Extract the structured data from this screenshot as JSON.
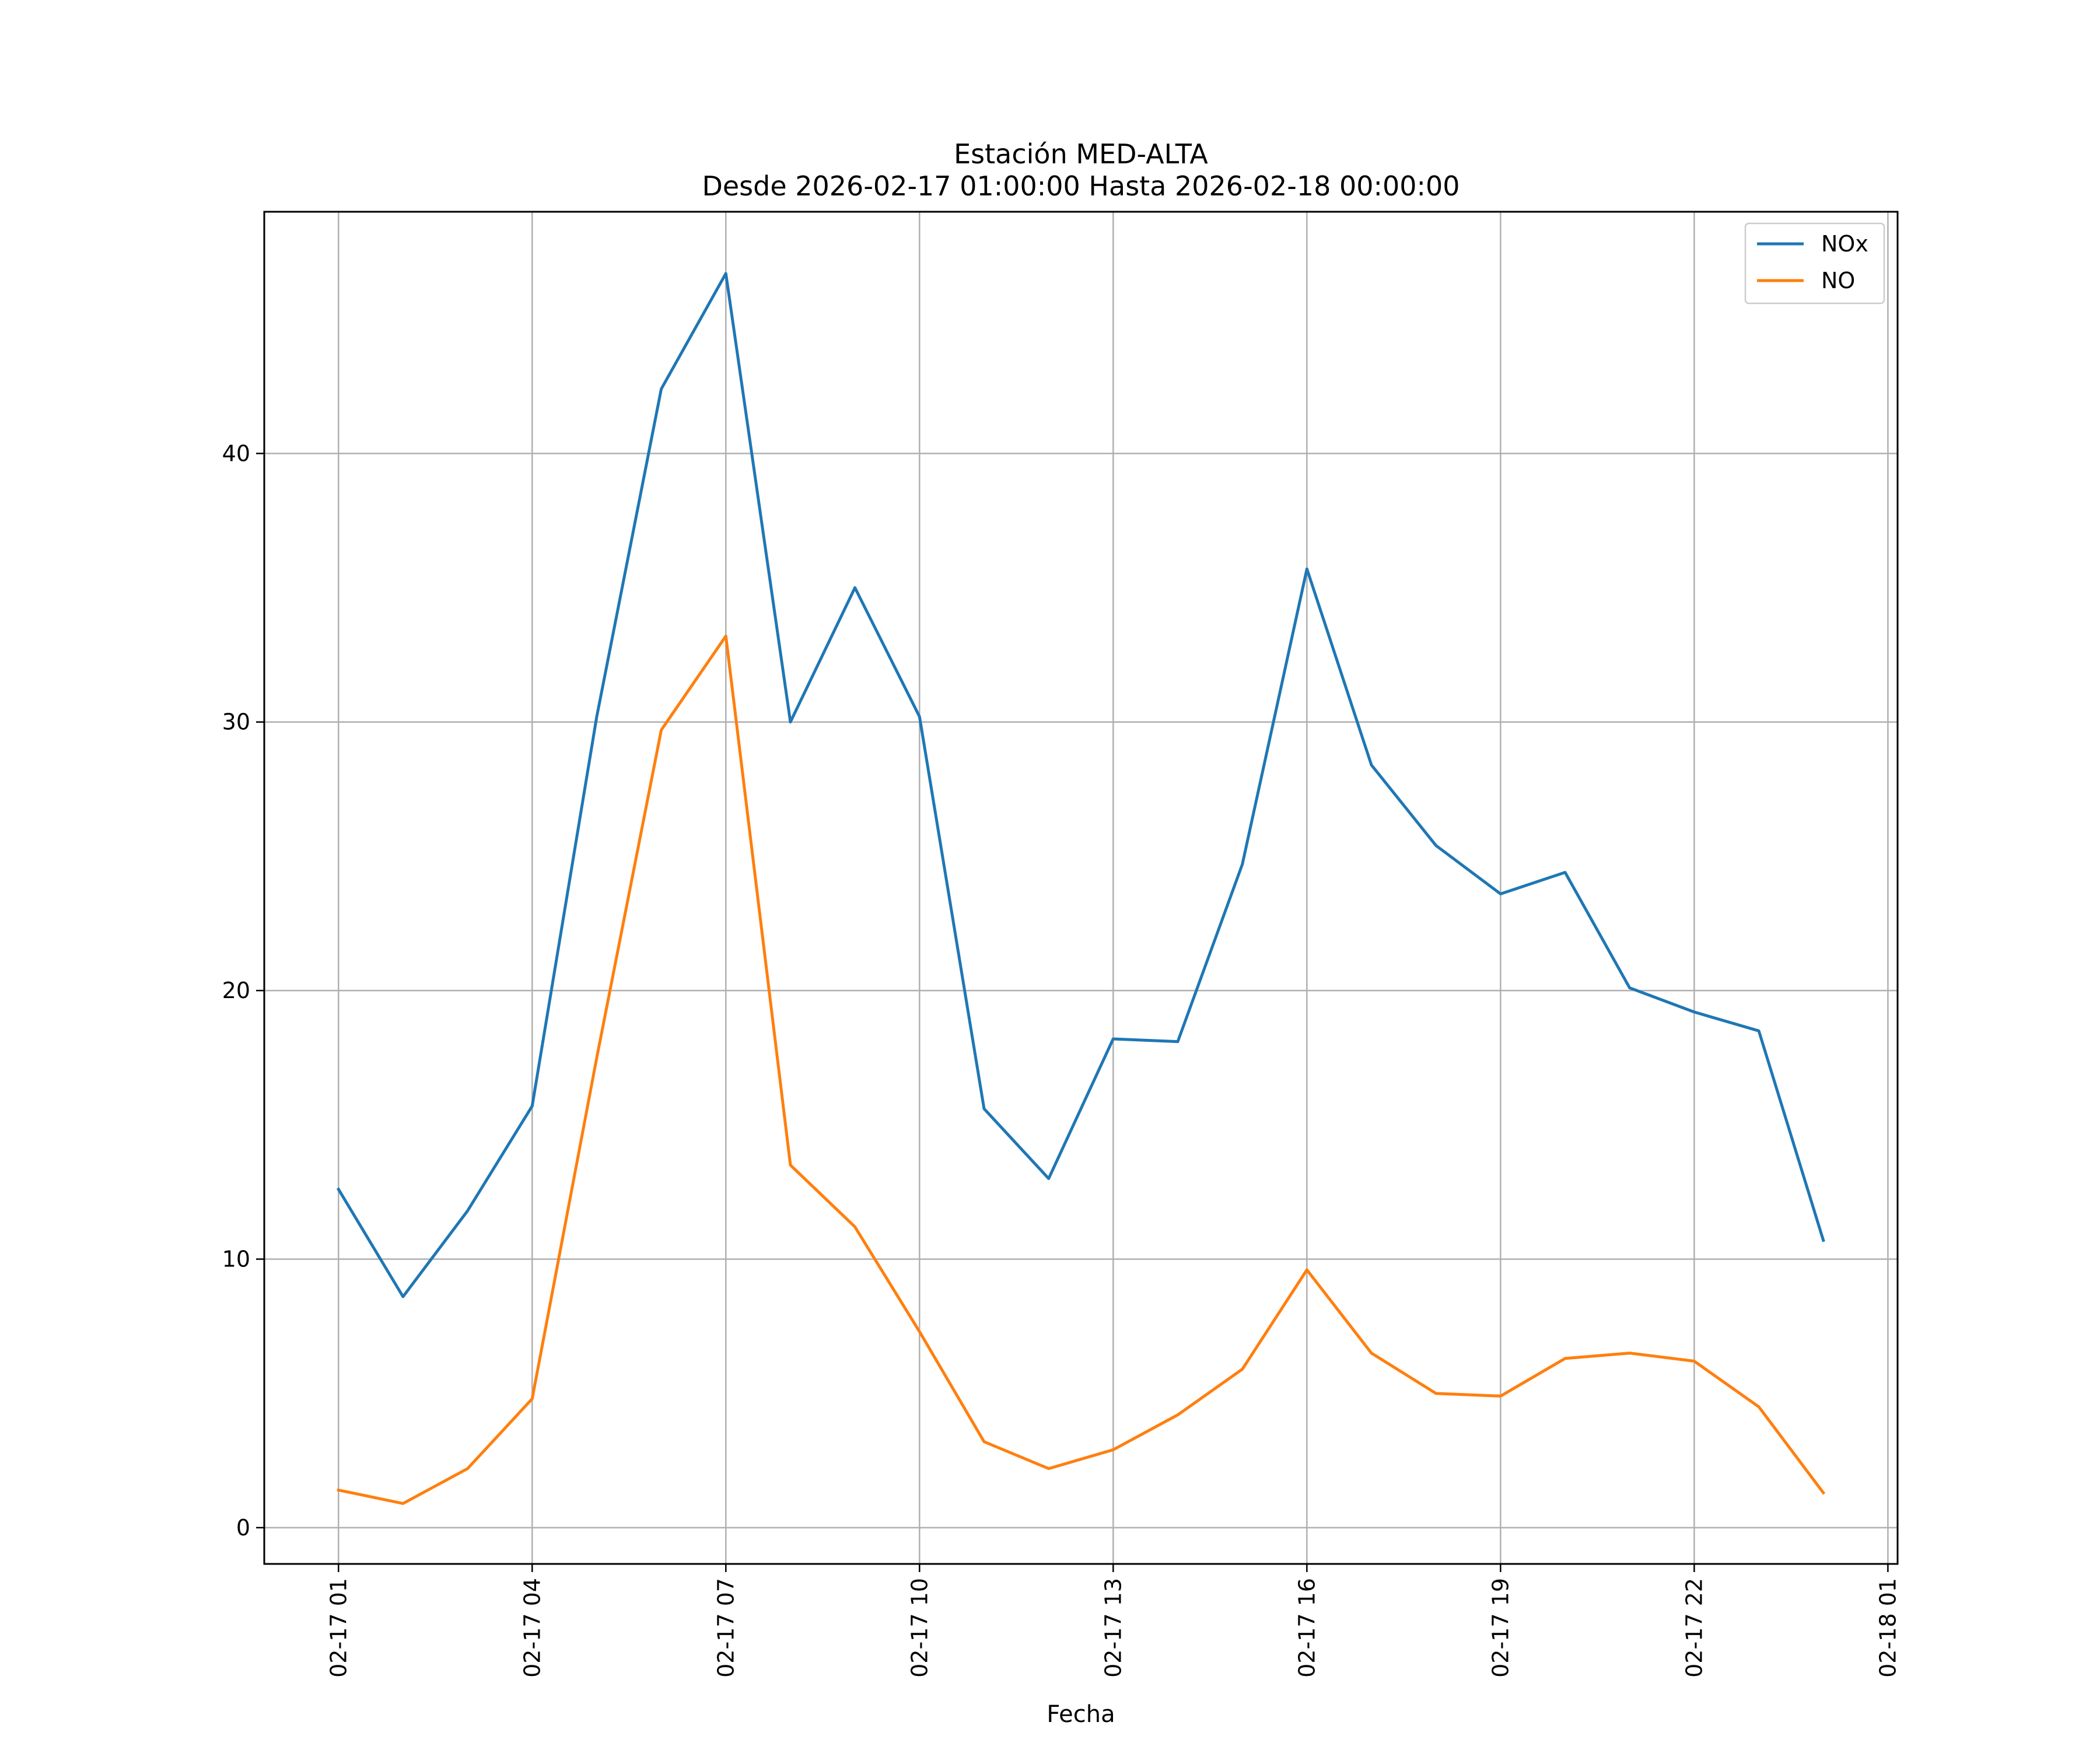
{
  "chart_data": {
    "type": "line",
    "title_line1": "Estación MED-ALTA",
    "title_line2": "Desde 2026-02-17 01:00:00 Hasta 2026-02-18 00:00:00",
    "xlabel": "Fecha",
    "ylabel": "",
    "ylim": [
      -1.35,
      49
    ],
    "xlim_hours": [
      -1.15,
      24.15
    ],
    "grid": true,
    "legend_position": "top-right",
    "x": [
      "02-17 01",
      "02-17 02",
      "02-17 03",
      "02-17 04",
      "02-17 05",
      "02-17 06",
      "02-17 07",
      "02-17 08",
      "02-17 09",
      "02-17 10",
      "02-17 11",
      "02-17 12",
      "02-17 13",
      "02-17 14",
      "02-17 15",
      "02-17 16",
      "02-17 17",
      "02-17 18",
      "02-17 19",
      "02-17 20",
      "02-17 21",
      "02-17 22",
      "02-17 23",
      "02-18 00"
    ],
    "x_ticks": [
      {
        "label": "02-17 01",
        "hour": 0
      },
      {
        "label": "02-17 04",
        "hour": 3
      },
      {
        "label": "02-17 07",
        "hour": 6
      },
      {
        "label": "02-17 10",
        "hour": 9
      },
      {
        "label": "02-17 13",
        "hour": 12
      },
      {
        "label": "02-17 16",
        "hour": 15
      },
      {
        "label": "02-17 19",
        "hour": 18
      },
      {
        "label": "02-17 22",
        "hour": 21
      },
      {
        "label": "02-18 01",
        "hour": 24
      }
    ],
    "y_ticks": [
      0,
      10,
      20,
      30,
      40
    ],
    "series": [
      {
        "name": "NOx",
        "color": "#1f77b4",
        "values": [
          12.6,
          8.6,
          11.8,
          15.7,
          30.2,
          42.4,
          46.7,
          30.0,
          35.0,
          30.2,
          15.6,
          13.0,
          18.2,
          18.1,
          24.7,
          35.7,
          28.4,
          25.4,
          23.6,
          24.4,
          20.1,
          19.2,
          18.5,
          10.7
        ]
      },
      {
        "name": "NO",
        "color": "#ff7f0e",
        "values": [
          1.4,
          0.9,
          2.2,
          4.8,
          17.5,
          29.7,
          33.2,
          13.5,
          11.2,
          7.3,
          3.2,
          2.2,
          2.9,
          4.2,
          5.9,
          9.6,
          6.5,
          5.0,
          4.9,
          6.3,
          6.5,
          6.2,
          4.5,
          1.3
        ]
      }
    ]
  }
}
